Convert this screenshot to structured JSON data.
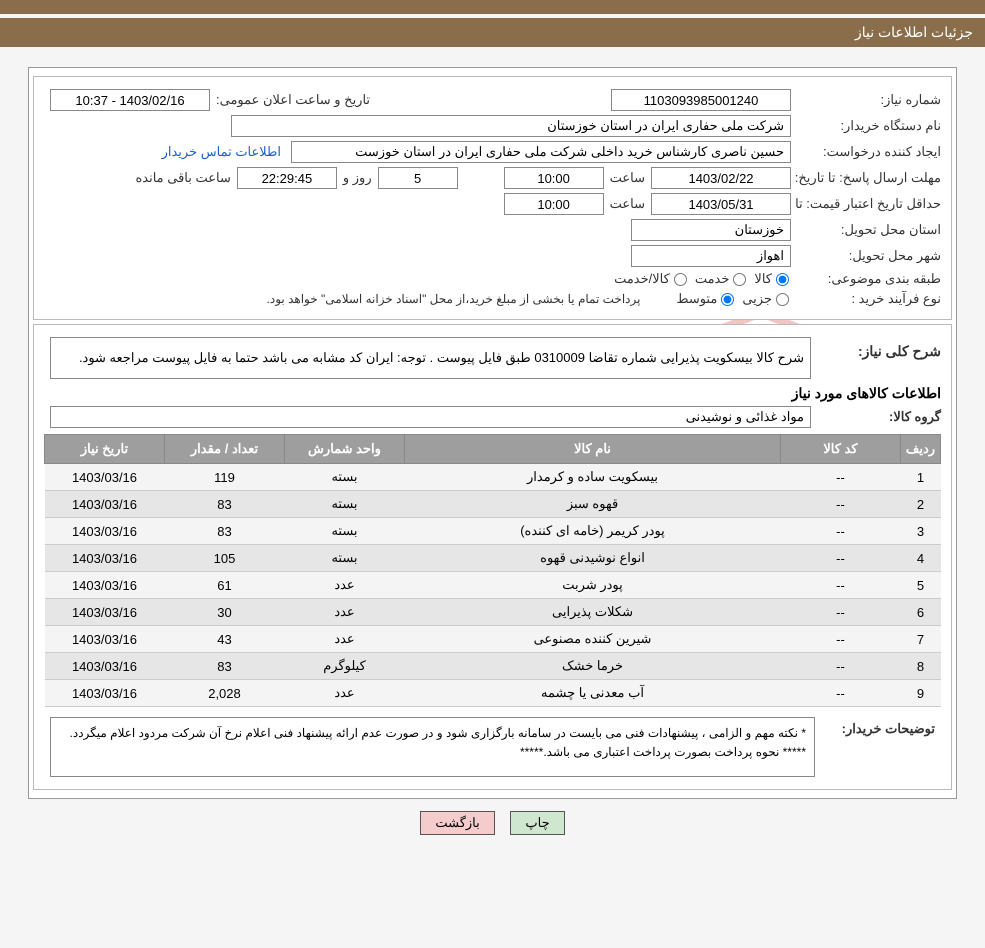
{
  "colors": {
    "header": "#8a6d4a",
    "table_header": "#9e9e9e",
    "btn_print": "#cfe6cf",
    "btn_back": "#f4cccc",
    "link": "#1a5fcc",
    "wm_red": "#d2322d"
  },
  "title": "جزئیات اطلاعات نیاز",
  "labels": {
    "need_no": "شماره نیاز:",
    "publish_datetime": "تاریخ و ساعت اعلان عمومی:",
    "buyer_org": "نام دستگاه خریدار:",
    "requester": "ایجاد کننده درخواست:",
    "contact_link": "اطلاعات تماس خریدار",
    "deadline": "مهلت ارسال پاسخ: تا تاریخ:",
    "at_time": "ساعت",
    "days_and": "روز و",
    "hours_remaining": "ساعت باقی مانده",
    "price_validity": "حداقل تاریخ اعتبار قیمت: تا تاریخ:",
    "delivery_province": "استان محل تحویل:",
    "delivery_city": "شهر محل تحویل:",
    "subject_class": "طبقه بندی موضوعی:",
    "goods": "کالا",
    "service": "خدمت",
    "goods_service": "کالا/خدمت",
    "process_type": "نوع فرآیند خرید :",
    "partial": "جزیی",
    "medium": "متوسط",
    "payment_note": "پرداخت تمام یا بخشی از مبلغ خرید،از محل \"اسناد خزانه اسلامی\" خواهد بود.",
    "need_desc": "شرح کلی نیاز:",
    "items_info": "اطلاعات کالاهای مورد نیاز",
    "goods_group": "گروه کالا:",
    "buyer_notes": "توضیحات خریدار:",
    "print": "چاپ",
    "back": "بازگشت"
  },
  "values": {
    "need_no": "1103093985001240",
    "publish_datetime": "1403/02/16 - 10:37",
    "buyer_org": "شرکت ملی حفاری ایران در استان خوزستان",
    "requester": "حسین ناصری کارشناس خرید داخلی شرکت ملی حفاری ایران در استان خوزست",
    "deadline_date": "1403/02/22",
    "deadline_time": "10:00",
    "days_left": "5",
    "countdown": "22:29:45",
    "price_validity_date": "1403/05/31",
    "price_validity_time": "10:00",
    "province": "خوزستان",
    "city": "اهواز",
    "need_desc": "شرح کالا  بیسکویت پذیرایی   شماره تقاضا  0310009  طبق فایل پیوست . توجه: ایران کد مشابه می باشد حتما به فایل پیوست مراجعه شود.",
    "goods_group": "مواد غذائی و نوشیدنی",
    "buyer_notes": "*  نکته مهم و الزامی ، پیشنهادات فنی می بایست در سامانه بارگزاری شود و در صورت عدم ارائه پیشنهاد فنی اعلام نرخ آن شرکت مردود اعلام میگردد.\n*****     نحوه پرداخت بصورت پرداخت اعتباری می باشد.*****"
  },
  "table": {
    "columns": [
      "ردیف",
      "کد کالا",
      "نام کالا",
      "واحد شمارش",
      "تعداد / مقدار",
      "تاریخ نیاز"
    ],
    "col_widths": [
      "40px",
      "120px",
      "auto",
      "120px",
      "120px",
      "120px"
    ],
    "rows": [
      {
        "n": "1",
        "code": "--",
        "name": "بیسکویت ساده و کرمدار",
        "unit": "بسته",
        "qty": "119",
        "date": "1403/03/16"
      },
      {
        "n": "2",
        "code": "--",
        "name": "قهوه سبز",
        "unit": "بسته",
        "qty": "83",
        "date": "1403/03/16"
      },
      {
        "n": "3",
        "code": "--",
        "name": "پودر کریمر (خامه ای کننده)",
        "unit": "بسته",
        "qty": "83",
        "date": "1403/03/16"
      },
      {
        "n": "4",
        "code": "--",
        "name": "انواع نوشیدنی قهوه",
        "unit": "بسته",
        "qty": "105",
        "date": "1403/03/16"
      },
      {
        "n": "5",
        "code": "--",
        "name": "پودر شربت",
        "unit": "عدد",
        "qty": "61",
        "date": "1403/03/16"
      },
      {
        "n": "6",
        "code": "--",
        "name": "شکلات پذیرایی",
        "unit": "عدد",
        "qty": "30",
        "date": "1403/03/16"
      },
      {
        "n": "7",
        "code": "--",
        "name": "شیرین کننده مصنوعی",
        "unit": "عدد",
        "qty": "43",
        "date": "1403/03/16"
      },
      {
        "n": "8",
        "code": "--",
        "name": "خرما خشک",
        "unit": "کیلوگرم",
        "qty": "83",
        "date": "1403/03/16"
      },
      {
        "n": "9",
        "code": "--",
        "name": "آب معدنی یا چشمه",
        "unit": "عدد",
        "qty": "2,028",
        "date": "1403/03/16"
      }
    ]
  },
  "watermark": {
    "text_gray": "AriaTender",
    "text_red": ".neT"
  }
}
